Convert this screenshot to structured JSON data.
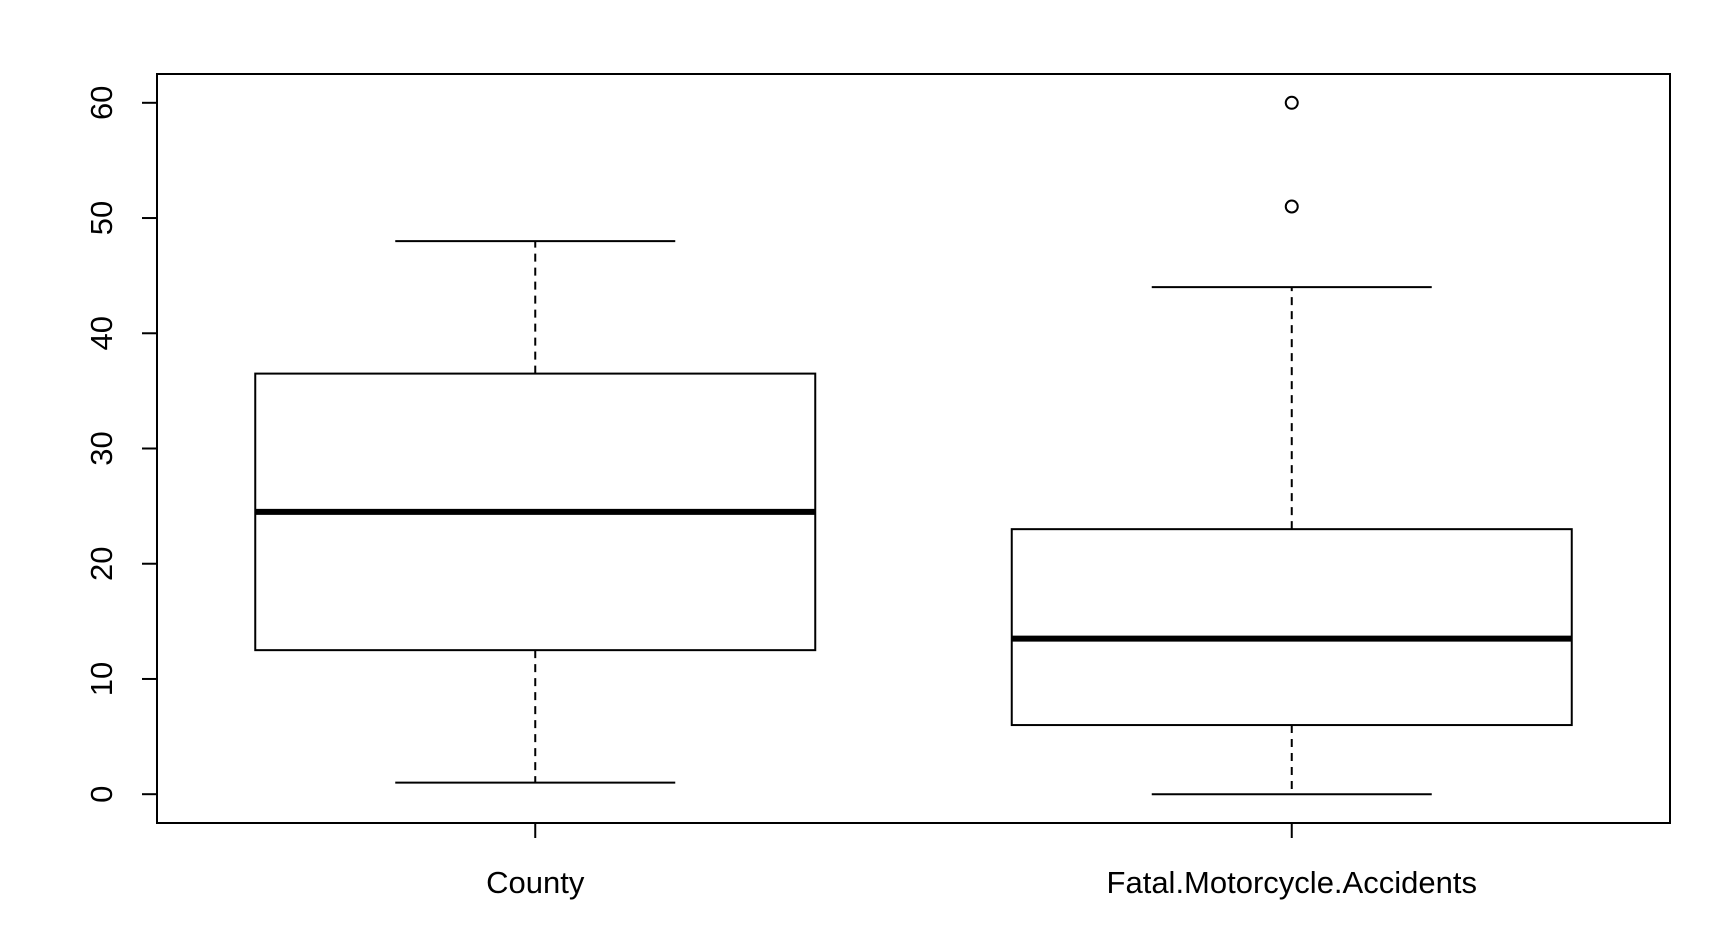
{
  "chart_data": {
    "type": "box",
    "title": "",
    "xlabel": "",
    "ylabel": "",
    "ylim": [
      -2.5,
      62.5
    ],
    "yticks": [
      0,
      10,
      20,
      30,
      40,
      50,
      60
    ],
    "ytick_labels": [
      "0",
      "10",
      "20",
      "30",
      "40",
      "50",
      "60"
    ],
    "categories": [
      "County",
      "Fatal.Motorcycle.Accidents"
    ],
    "boxes": [
      {
        "category": "County",
        "whisker_low": 1,
        "q1": 12.5,
        "median": 24.5,
        "q3": 36.5,
        "whisker_high": 48,
        "outliers": []
      },
      {
        "category": "Fatal.Motorcycle.Accidents",
        "whisker_low": 0,
        "q1": 6,
        "median": 13.5,
        "q3": 23,
        "whisker_high": 44,
        "outliers": [
          51,
          60
        ]
      }
    ],
    "grid": false,
    "legend": "none",
    "colors": {
      "stroke": "#000000",
      "fill": "#ffffff"
    }
  }
}
